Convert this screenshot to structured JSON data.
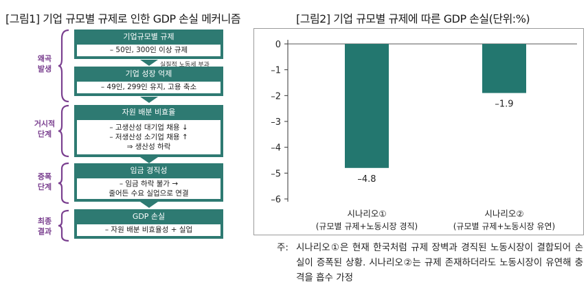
{
  "figure1": {
    "title": "[그림1] 기업 규모별 규제로 인한 GDP 손실 메커니즘",
    "stages": [
      {
        "label_line1": "왜곡",
        "label_line2": "발생"
      },
      {
        "label_line1": "거시적",
        "label_line2": "단계"
      },
      {
        "label_line1": "증폭",
        "label_line2": "단계"
      },
      {
        "label_line1": "최종",
        "label_line2": "결과"
      }
    ],
    "blocks": [
      {
        "header": "기업규모별 규제",
        "lines": [
          "– 50인, 300인 이상 규제"
        ]
      },
      {
        "header": "기업 성장 억제",
        "lines": [
          "– 49인, 299인 유지, 고용 축소"
        ]
      },
      {
        "header": "자원 배분 비효율",
        "lines": [
          "– 고생산성 대기업 채용 ↓",
          "– 저생산성 소기업 채용 ↑",
          "⇒ 생산성 하락"
        ]
      },
      {
        "header": "임금 경직성",
        "lines": [
          "– 임금 하락 불가 →",
          "줄어든 수요 실업으로 연결"
        ]
      },
      {
        "header": "GDP 손실",
        "lines": [
          "– 자원 배분 비효율성 + 실업"
        ]
      }
    ],
    "side_note": "실질적 노동세 부과",
    "colors": {
      "block": "#2e7a72",
      "stage_label": "#7a3f8f"
    }
  },
  "figure2": {
    "title": "[그림2] 기업 규모별 규제에 따른 GDP 손실(단위:%)",
    "note_prefix": "주:",
    "note_text": "시나리오①은 현재 한국처럼 규제 장벽과 경직된 노동시장이 결합되어 손실이 증폭된 상황. 시나리오②는 규제 존재하더라도 노동시장이 유연해 충격을 흡수 가정"
  },
  "chart_data": {
    "type": "bar",
    "title": "[그림2] 기업 규모별 규제에 따른 GDP 손실(단위:%)",
    "categories": [
      {
        "line1": "시나리오①",
        "line2": "(규모별 규제+노동시장 경직)"
      },
      {
        "line1": "시나리오②",
        "line2": "(규모별 규제+노동시장 유연)"
      }
    ],
    "values": [
      -4.8,
      -1.9
    ],
    "value_labels": [
      "–4.8",
      "–1.9"
    ],
    "yticks": [
      0,
      -1,
      -2,
      -3,
      -4,
      -5,
      -6
    ],
    "ytick_labels": [
      "0",
      "–1",
      "–2",
      "–3",
      "–4",
      "–5",
      "–6"
    ],
    "ylim": [
      -6,
      0
    ],
    "grid": false,
    "bar_color": "#23776f",
    "xlabel": "",
    "ylabel": ""
  }
}
